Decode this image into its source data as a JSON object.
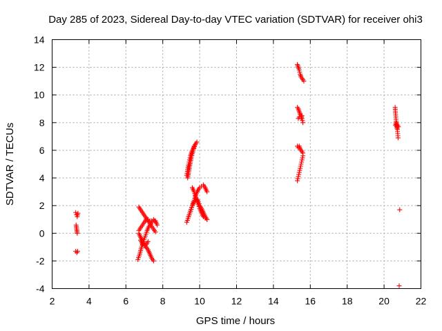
{
  "chart_data": {
    "type": "scatter",
    "title": "Day 285 of 2023, Sidereal Day-to-day VTEC variation (SDTVAR) for receiver ohi3",
    "xlabel": "GPS time / hours",
    "ylabel": "SDTVAR / TECUs",
    "xlim": [
      2,
      22
    ],
    "ylim": [
      -4,
      14
    ],
    "xticks": [
      2,
      4,
      6,
      8,
      10,
      12,
      14,
      16,
      18,
      20,
      22
    ],
    "yticks": [
      -4,
      -2,
      0,
      2,
      4,
      6,
      8,
      10,
      12,
      14
    ],
    "grid": true,
    "marker": "+",
    "color": "#ff0000",
    "series": [
      {
        "name": "SDTVAR",
        "segments": [
          {
            "x": [
              3.28,
              3.32,
              3.36,
              3.4
            ],
            "y": [
              1.5,
              1.35,
              1.2,
              1.45
            ]
          },
          {
            "x": [
              3.3,
              3.32,
              3.34,
              3.36
            ],
            "y": [
              0.6,
              0.4,
              0.2,
              0.0
            ]
          },
          {
            "x": [
              3.28,
              3.34,
              3.38
            ],
            "y": [
              -1.3,
              -1.4,
              -1.3
            ]
          },
          {
            "x": [
              6.7,
              6.8,
              6.9,
              7.0,
              7.1,
              7.2,
              7.3,
              7.4,
              7.5,
              7.6
            ],
            "y": [
              1.9,
              1.7,
              1.5,
              1.3,
              1.1,
              0.9,
              0.7,
              0.5,
              0.3,
              0.1
            ]
          },
          {
            "x": [
              6.7,
              6.8,
              6.9,
              7.0,
              7.1,
              7.2,
              7.3,
              7.4,
              7.5,
              7.6,
              7.7
            ],
            "y": [
              0.2,
              0.4,
              0.6,
              0.8,
              1.0,
              1.0,
              0.9,
              0.9,
              1.0,
              0.9,
              0.6
            ]
          },
          {
            "x": [
              6.65,
              6.75,
              6.85,
              6.95,
              7.05,
              7.15,
              7.25,
              7.35,
              7.45,
              7.55
            ],
            "y": [
              -1.9,
              -1.5,
              -1.0,
              -0.6,
              -0.2,
              0.2,
              0.5,
              0.7,
              0.8,
              0.9
            ]
          },
          {
            "x": [
              6.7,
              6.8,
              6.9,
              7.0,
              7.1,
              7.2,
              7.3,
              7.4,
              7.5
            ],
            "y": [
              0.0,
              -0.3,
              -0.6,
              -0.8,
              -1.0,
              -1.2,
              -1.5,
              -1.8,
              -2.0
            ]
          },
          {
            "x": [
              6.8,
              6.9,
              7.0,
              7.1,
              7.2
            ],
            "y": [
              -0.5,
              -0.8,
              -0.9,
              -0.8,
              -0.6
            ]
          },
          {
            "x": [
              9.3,
              9.4,
              9.5,
              9.6,
              9.7,
              9.8,
              9.9,
              10.0,
              10.1,
              10.2,
              10.3,
              10.4
            ],
            "y": [
              0.8,
              1.2,
              1.6,
              2.0,
              2.3,
              2.5,
              2.4,
              2.0,
              1.8,
              1.5,
              1.2,
              1.0
            ]
          },
          {
            "x": [
              9.4,
              9.5,
              9.6,
              9.7,
              9.8,
              9.9,
              10.0,
              10.1,
              10.2,
              10.3,
              10.4
            ],
            "y": [
              1.2,
              1.6,
              2.0,
              2.4,
              2.8,
              3.1,
              3.3,
              3.4,
              3.5,
              3.3,
              3.0
            ]
          },
          {
            "x": [
              9.6,
              9.7,
              9.8,
              9.9,
              10.0,
              10.1,
              10.2,
              10.3,
              10.4
            ],
            "y": [
              3.3,
              3.0,
              2.6,
              2.2,
              1.8,
              1.5,
              1.2,
              1.1,
              1.0
            ]
          },
          {
            "x": [
              9.3,
              9.35,
              9.4,
              9.45,
              9.5,
              9.55,
              9.6,
              9.65,
              9.7,
              9.75,
              9.8,
              9.85
            ],
            "y": [
              4.2,
              4.6,
              5.0,
              5.3,
              5.6,
              5.8,
              6.0,
              6.1,
              6.3,
              6.4,
              6.5,
              6.6
            ]
          },
          {
            "x": [
              9.35,
              9.45,
              9.55,
              9.65,
              9.75
            ],
            "y": [
              4.0,
              4.8,
              5.5,
              6.0,
              6.4
            ]
          },
          {
            "x": [
              15.3,
              15.35,
              15.4,
              15.45,
              15.5,
              15.55,
              15.6,
              15.65
            ],
            "y": [
              12.2,
              12.0,
              11.8,
              11.5,
              11.3,
              11.2,
              11.1,
              11.0
            ]
          },
          {
            "x": [
              15.3,
              15.35,
              15.4,
              15.45,
              15.5,
              15.55,
              15.6
            ],
            "y": [
              9.1,
              9.0,
              8.8,
              8.6,
              8.5,
              8.3,
              8.0
            ]
          },
          {
            "x": [
              15.35,
              15.4,
              15.5,
              15.55
            ],
            "y": [
              8.3,
              8.4,
              8.3,
              8.5
            ]
          },
          {
            "x": [
              15.3,
              15.35,
              15.4,
              15.45,
              15.5,
              15.55,
              15.6
            ],
            "y": [
              6.3,
              6.2,
              6.3,
              6.1,
              6.0,
              5.9,
              5.8
            ]
          },
          {
            "x": [
              15.3,
              15.35,
              15.4,
              15.45,
              15.5,
              15.55,
              15.6
            ],
            "y": [
              3.8,
              4.1,
              4.4,
              4.7,
              5.0,
              5.3,
              5.6
            ]
          },
          {
            "x": [
              20.6,
              20.62,
              20.64,
              20.66,
              20.68,
              20.7,
              20.72,
              20.74,
              20.76
            ],
            "y": [
              9.1,
              8.7,
              8.4,
              8.1,
              7.9,
              7.7,
              7.5,
              7.2,
              6.9
            ]
          },
          {
            "x": [
              20.62,
              20.66,
              20.7,
              20.74,
              20.78
            ],
            "y": [
              7.8,
              8.0,
              7.6,
              7.8,
              7.7
            ]
          },
          {
            "x": [
              20.85
            ],
            "y": [
              1.7
            ]
          },
          {
            "x": [
              20.82
            ],
            "y": [
              -3.8
            ]
          }
        ]
      }
    ]
  }
}
